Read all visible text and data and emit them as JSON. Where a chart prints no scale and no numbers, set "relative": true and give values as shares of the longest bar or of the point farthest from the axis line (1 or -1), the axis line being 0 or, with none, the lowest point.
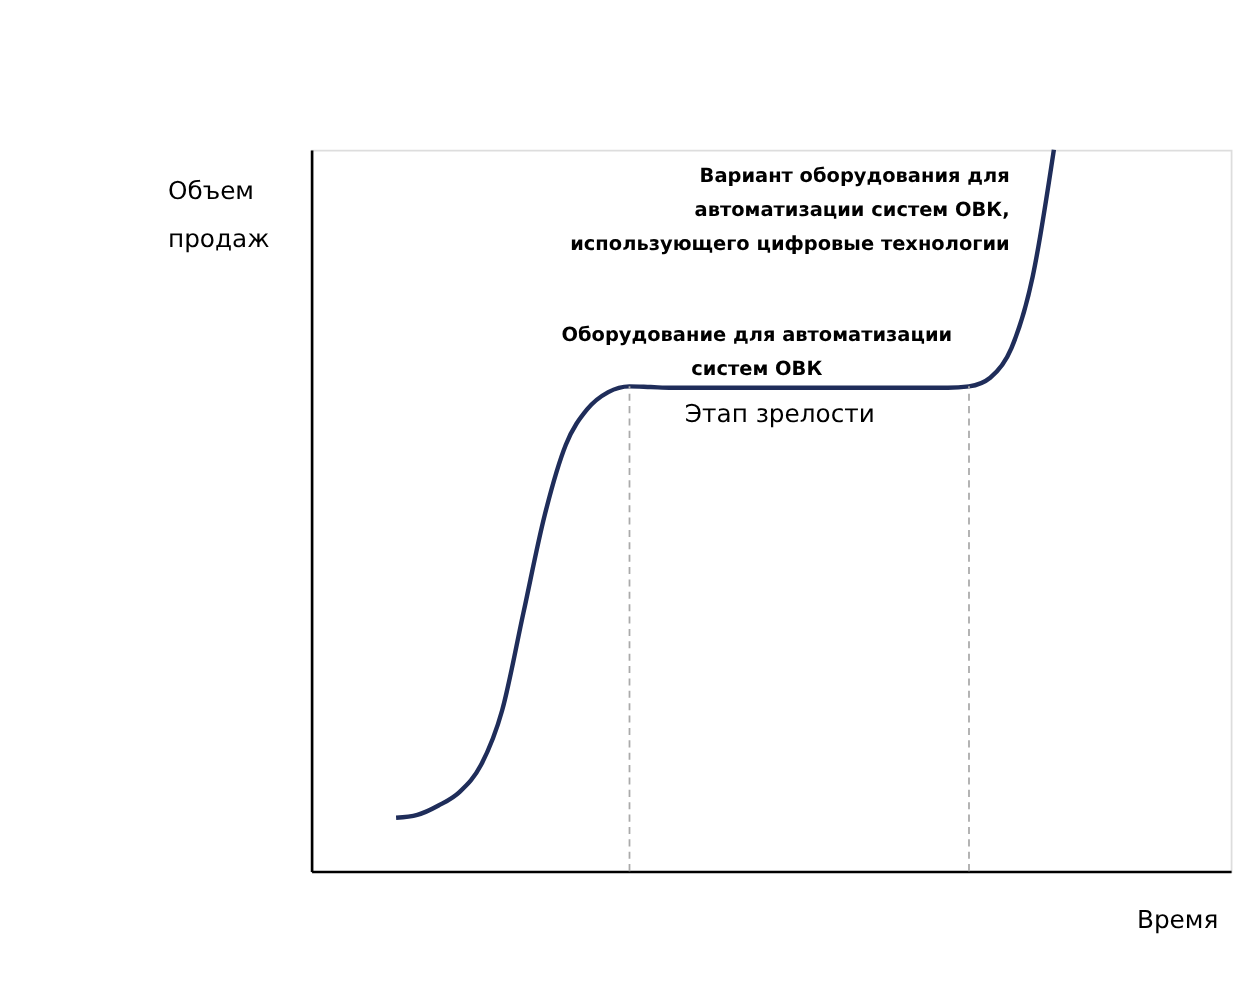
{
  "chart_data": {
    "type": "line",
    "relative": true,
    "xlabel": "Время",
    "ylabel": "Объем продаж",
    "categories": [
      null,
      null,
      null,
      null,
      null,
      null,
      null,
      null,
      null,
      null,
      null,
      null,
      null,
      null,
      null,
      null,
      null,
      null,
      null,
      null,
      null,
      null,
      null,
      null,
      null,
      null,
      null,
      null,
      null,
      null,
      null,
      null
    ],
    "series": [
      {
        "color": "#1f2d5a",
        "values": [
          0.074,
          0.078,
          0.091,
          0.11,
          0.147,
          0.223,
          0.358,
          0.493,
          0.591,
          0.64,
          0.664,
          0.672,
          0.671,
          0.67,
          0.67,
          0.67,
          0.67,
          0.67,
          0.67,
          0.67,
          0.67,
          0.67,
          0.67,
          0.67,
          0.67,
          0.67,
          0.67,
          0.672,
          0.684,
          0.725,
          0.824,
          1.0
        ]
      }
    ],
    "annotations": [
      "Вариант оборудования для\nавтоматизации систем ОВК,\nиспользующего цифровые технологии",
      "Оборудование для автоматизации\nсистем ОВК",
      "Этап зрелости"
    ],
    "grid": false,
    "marker": "none",
    "line_style": "solid"
  }
}
